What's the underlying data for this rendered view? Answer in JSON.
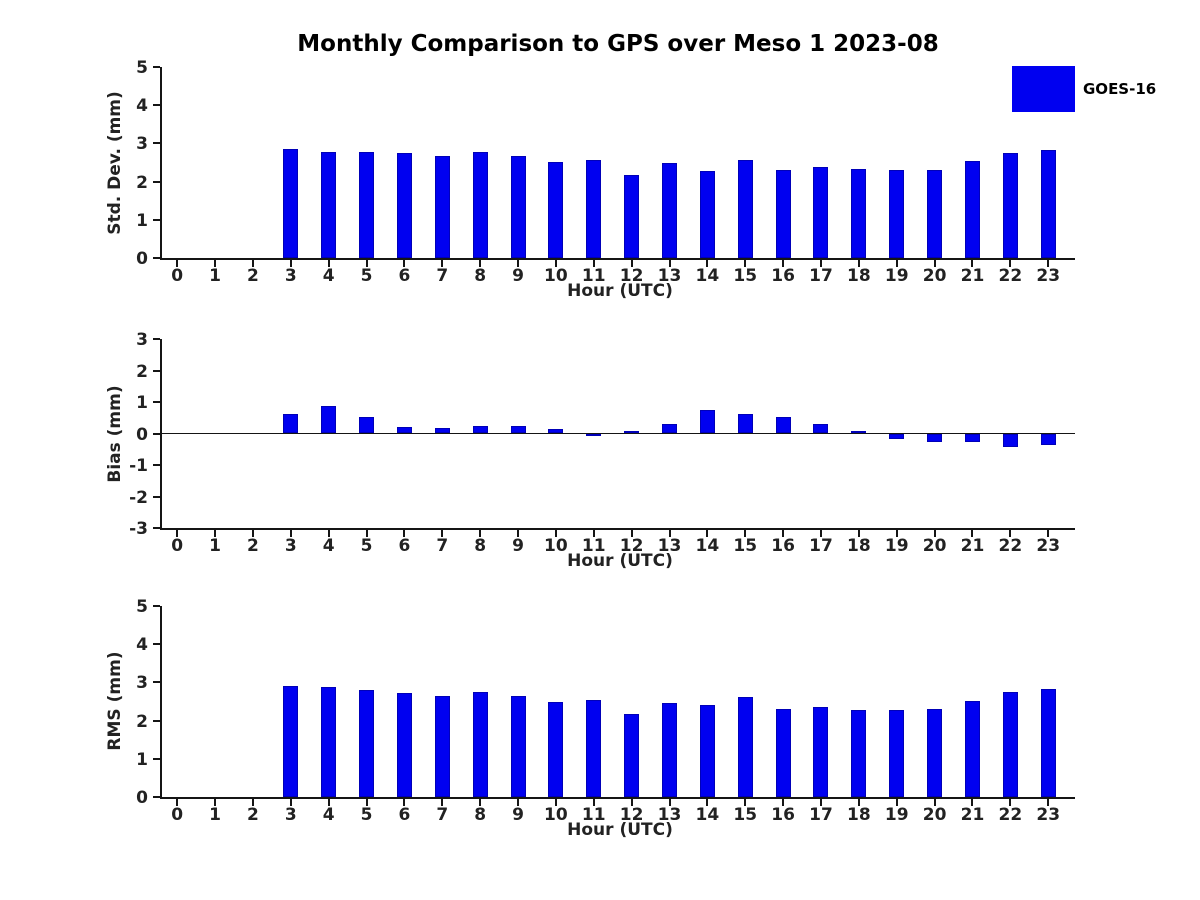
{
  "title": "Monthly Comparison to GPS over Meso 1 2023-08",
  "legend": {
    "label": "GOES-16",
    "color": "#0000f0",
    "position": "top-right"
  },
  "colors": {
    "bar_fill": "#0000f0",
    "bar_edge": "#0000b8",
    "axis": "#151515",
    "background": "#ffffff"
  },
  "chart_data": [
    {
      "type": "bar",
      "panel": "std-dev",
      "series_name": "GOES-16",
      "ylabel": "Std. Dev. (mm)",
      "xlabel": "Hour (UTC)",
      "ylim": [
        0,
        5
      ],
      "yticks": [
        0,
        1,
        2,
        3,
        4,
        5
      ],
      "grid": false,
      "categories": [
        0,
        1,
        2,
        3,
        4,
        5,
        6,
        7,
        8,
        9,
        10,
        11,
        12,
        13,
        14,
        15,
        16,
        17,
        18,
        19,
        20,
        21,
        22,
        23
      ],
      "values": [
        0,
        0,
        0,
        2.85,
        2.77,
        2.77,
        2.74,
        2.67,
        2.77,
        2.67,
        2.52,
        2.57,
        2.17,
        2.48,
        2.27,
        2.57,
        2.31,
        2.39,
        2.33,
        2.31,
        2.31,
        2.54,
        2.76,
        2.83
      ]
    },
    {
      "type": "bar",
      "panel": "bias",
      "series_name": "GOES-16",
      "ylabel": "Bias (mm)",
      "xlabel": "Hour (UTC)",
      "ylim": [
        -3,
        3
      ],
      "yticks": [
        -3,
        -2,
        -1,
        0,
        1,
        2,
        3
      ],
      "grid": false,
      "zero_line": true,
      "categories": [
        0,
        1,
        2,
        3,
        4,
        5,
        6,
        7,
        8,
        9,
        10,
        11,
        12,
        13,
        14,
        15,
        16,
        17,
        18,
        19,
        20,
        21,
        22,
        23
      ],
      "values": [
        0,
        0,
        0,
        0.62,
        0.87,
        0.53,
        0.21,
        0.17,
        0.24,
        0.23,
        0.15,
        -0.04,
        0.08,
        0.31,
        0.76,
        0.63,
        0.52,
        0.3,
        0.08,
        -0.18,
        -0.27,
        -0.26,
        -0.42,
        -0.36
      ]
    },
    {
      "type": "bar",
      "panel": "rms",
      "series_name": "GOES-16",
      "ylabel": "RMS (mm)",
      "xlabel": "Hour (UTC)",
      "ylim": [
        0,
        5
      ],
      "yticks": [
        0,
        1,
        2,
        3,
        4,
        5
      ],
      "grid": false,
      "categories": [
        0,
        1,
        2,
        3,
        4,
        5,
        6,
        7,
        8,
        9,
        10,
        11,
        12,
        13,
        14,
        15,
        16,
        17,
        18,
        19,
        20,
        21,
        22,
        23
      ],
      "values": [
        0,
        0,
        0,
        2.91,
        2.88,
        2.8,
        2.71,
        2.64,
        2.74,
        2.64,
        2.5,
        2.55,
        2.17,
        2.47,
        2.4,
        2.63,
        2.31,
        2.36,
        2.28,
        2.28,
        2.3,
        2.52,
        2.76,
        2.83
      ]
    }
  ]
}
